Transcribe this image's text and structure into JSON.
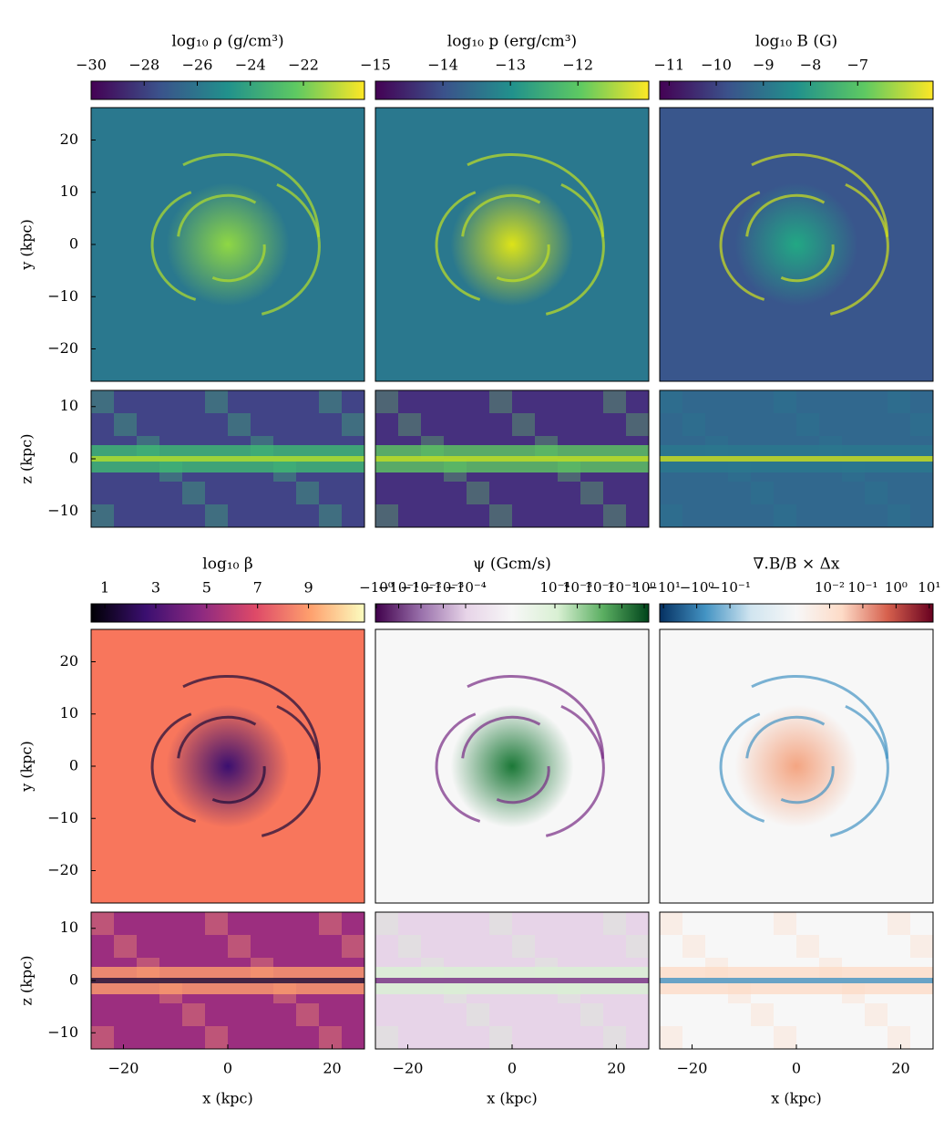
{
  "chart_data": [
    {
      "type": "heatmap",
      "title": "log₁₀ ρ (g/cm³)",
      "colormap": "viridis",
      "scale": "linear",
      "clim": [
        -30,
        -19.7
      ],
      "cticks": [
        {
          "value": -30,
          "label": "−30"
        },
        {
          "value": -28,
          "label": "−28"
        },
        {
          "value": -26,
          "label": "−26"
        },
        {
          "value": -24,
          "label": "−24"
        },
        {
          "value": -22,
          "label": "−22"
        }
      ],
      "panels": [
        {
          "ylabel": "y (kpc)",
          "ylim": [
            -26.2,
            26.2
          ],
          "yticks": [
            20,
            10,
            0,
            {
              "value": -10,
              "label": "−10"
            },
            {
              "value": -20,
              "label": "−20"
            }
          ]
        },
        {
          "ylabel": "z (kpc)",
          "ylim": [
            -13.1,
            13.1
          ],
          "yticks": [
            10,
            0,
            {
              "value": -10,
              "label": "−10"
            }
          ]
        }
      ]
    },
    {
      "type": "heatmap",
      "title": "log₁₀ p (erg/cm³)",
      "colormap": "viridis",
      "scale": "linear",
      "clim": [
        -15,
        -10.95
      ],
      "cticks": [
        {
          "value": -15,
          "label": "−15"
        },
        {
          "value": -14,
          "label": "−14"
        },
        {
          "value": -13,
          "label": "−13"
        },
        {
          "value": -12,
          "label": "−12"
        }
      ],
      "panels": [
        {},
        {}
      ]
    },
    {
      "type": "heatmap",
      "title": "log₁₀ B (G)",
      "colormap": "viridis",
      "scale": "linear",
      "clim": [
        -11.2,
        -5.4
      ],
      "cticks": [
        {
          "value": -11,
          "label": "−11"
        },
        {
          "value": -10,
          "label": "−10"
        },
        {
          "value": -9,
          "label": "−9"
        },
        {
          "value": -8,
          "label": "−8"
        },
        {
          "value": -7,
          "label": "−7"
        }
      ],
      "panels": [
        {},
        {}
      ]
    },
    {
      "type": "heatmap",
      "title": "log₁₀ β",
      "colormap": "magma",
      "scale": "linear",
      "clim": [
        0.46,
        11.2
      ],
      "cticks": [
        1,
        3,
        5,
        7,
        9
      ],
      "panels": [
        {
          "ylabel": "y (kpc)",
          "ylim": [
            -26.2,
            26.2
          ],
          "yticks": [
            20,
            10,
            0,
            {
              "value": -10,
              "label": "−10"
            },
            {
              "value": -20,
              "label": "−20"
            }
          ]
        },
        {
          "ylabel": "z (kpc)",
          "ylim": [
            -13.1,
            13.1
          ],
          "yticks": [
            10,
            0,
            {
              "value": -10,
              "label": "−10"
            }
          ],
          "xlabel": "x (kpc)",
          "xlim": [
            -26.2,
            26.2
          ],
          "xticks": [
            {
              "value": -20,
              "label": "−20"
            },
            0,
            20
          ]
        }
      ]
    },
    {
      "type": "heatmap",
      "title": "ψ (Gcm/s)",
      "colormap": "PRGn",
      "scale": "symlog",
      "linthresh": 1e-05,
      "clim": [
        -1.1,
        1.6
      ],
      "cticks": [
        {
          "value": -1,
          "label": "−10⁰"
        },
        {
          "value": -0.1,
          "label": "−10⁻¹"
        },
        {
          "value": -0.01,
          "label": "−10⁻²"
        },
        {
          "value": -0.001,
          "label": "−10⁻³"
        },
        {
          "value": -0.0001,
          "label": "−10⁻⁴"
        },
        {
          "value": 0.0001,
          "label": "10⁻⁴"
        },
        {
          "value": 0.001,
          "label": "10⁻³"
        },
        {
          "value": 0.01,
          "label": "10⁻²"
        },
        {
          "value": 0.1,
          "label": "10⁻¹"
        },
        {
          "value": 1,
          "label": "10⁰"
        }
      ],
      "panels": [
        {},
        {
          "xlabel": "x (kpc)",
          "xlim": [
            -26.2,
            26.2
          ],
          "xticks": [
            {
              "value": -20,
              "label": "−20"
            },
            0,
            20
          ]
        }
      ]
    },
    {
      "type": "heatmap",
      "title": "∇.B/B × Δx",
      "colormap": "RdBu_r",
      "scale": "symlog",
      "linthresh": 0.01,
      "clim": [
        -13,
        13
      ],
      "cticks": [
        {
          "value": -10,
          "label": "−10¹"
        },
        {
          "value": -1,
          "label": "−10⁰"
        },
        {
          "value": -0.1,
          "label": "−10⁻¹"
        },
        {
          "value": 0.01,
          "label": "10⁻²"
        },
        {
          "value": 0.1,
          "label": "10⁻¹"
        },
        {
          "value": 1,
          "label": "10⁰"
        },
        {
          "value": 10,
          "label": "10¹"
        }
      ],
      "panels": [
        {},
        {
          "xlabel": "x (kpc)",
          "xlim": [
            -26.2,
            26.2
          ],
          "xticks": [
            {
              "value": -20,
              "label": "−20"
            },
            0,
            20
          ]
        }
      ]
    }
  ]
}
